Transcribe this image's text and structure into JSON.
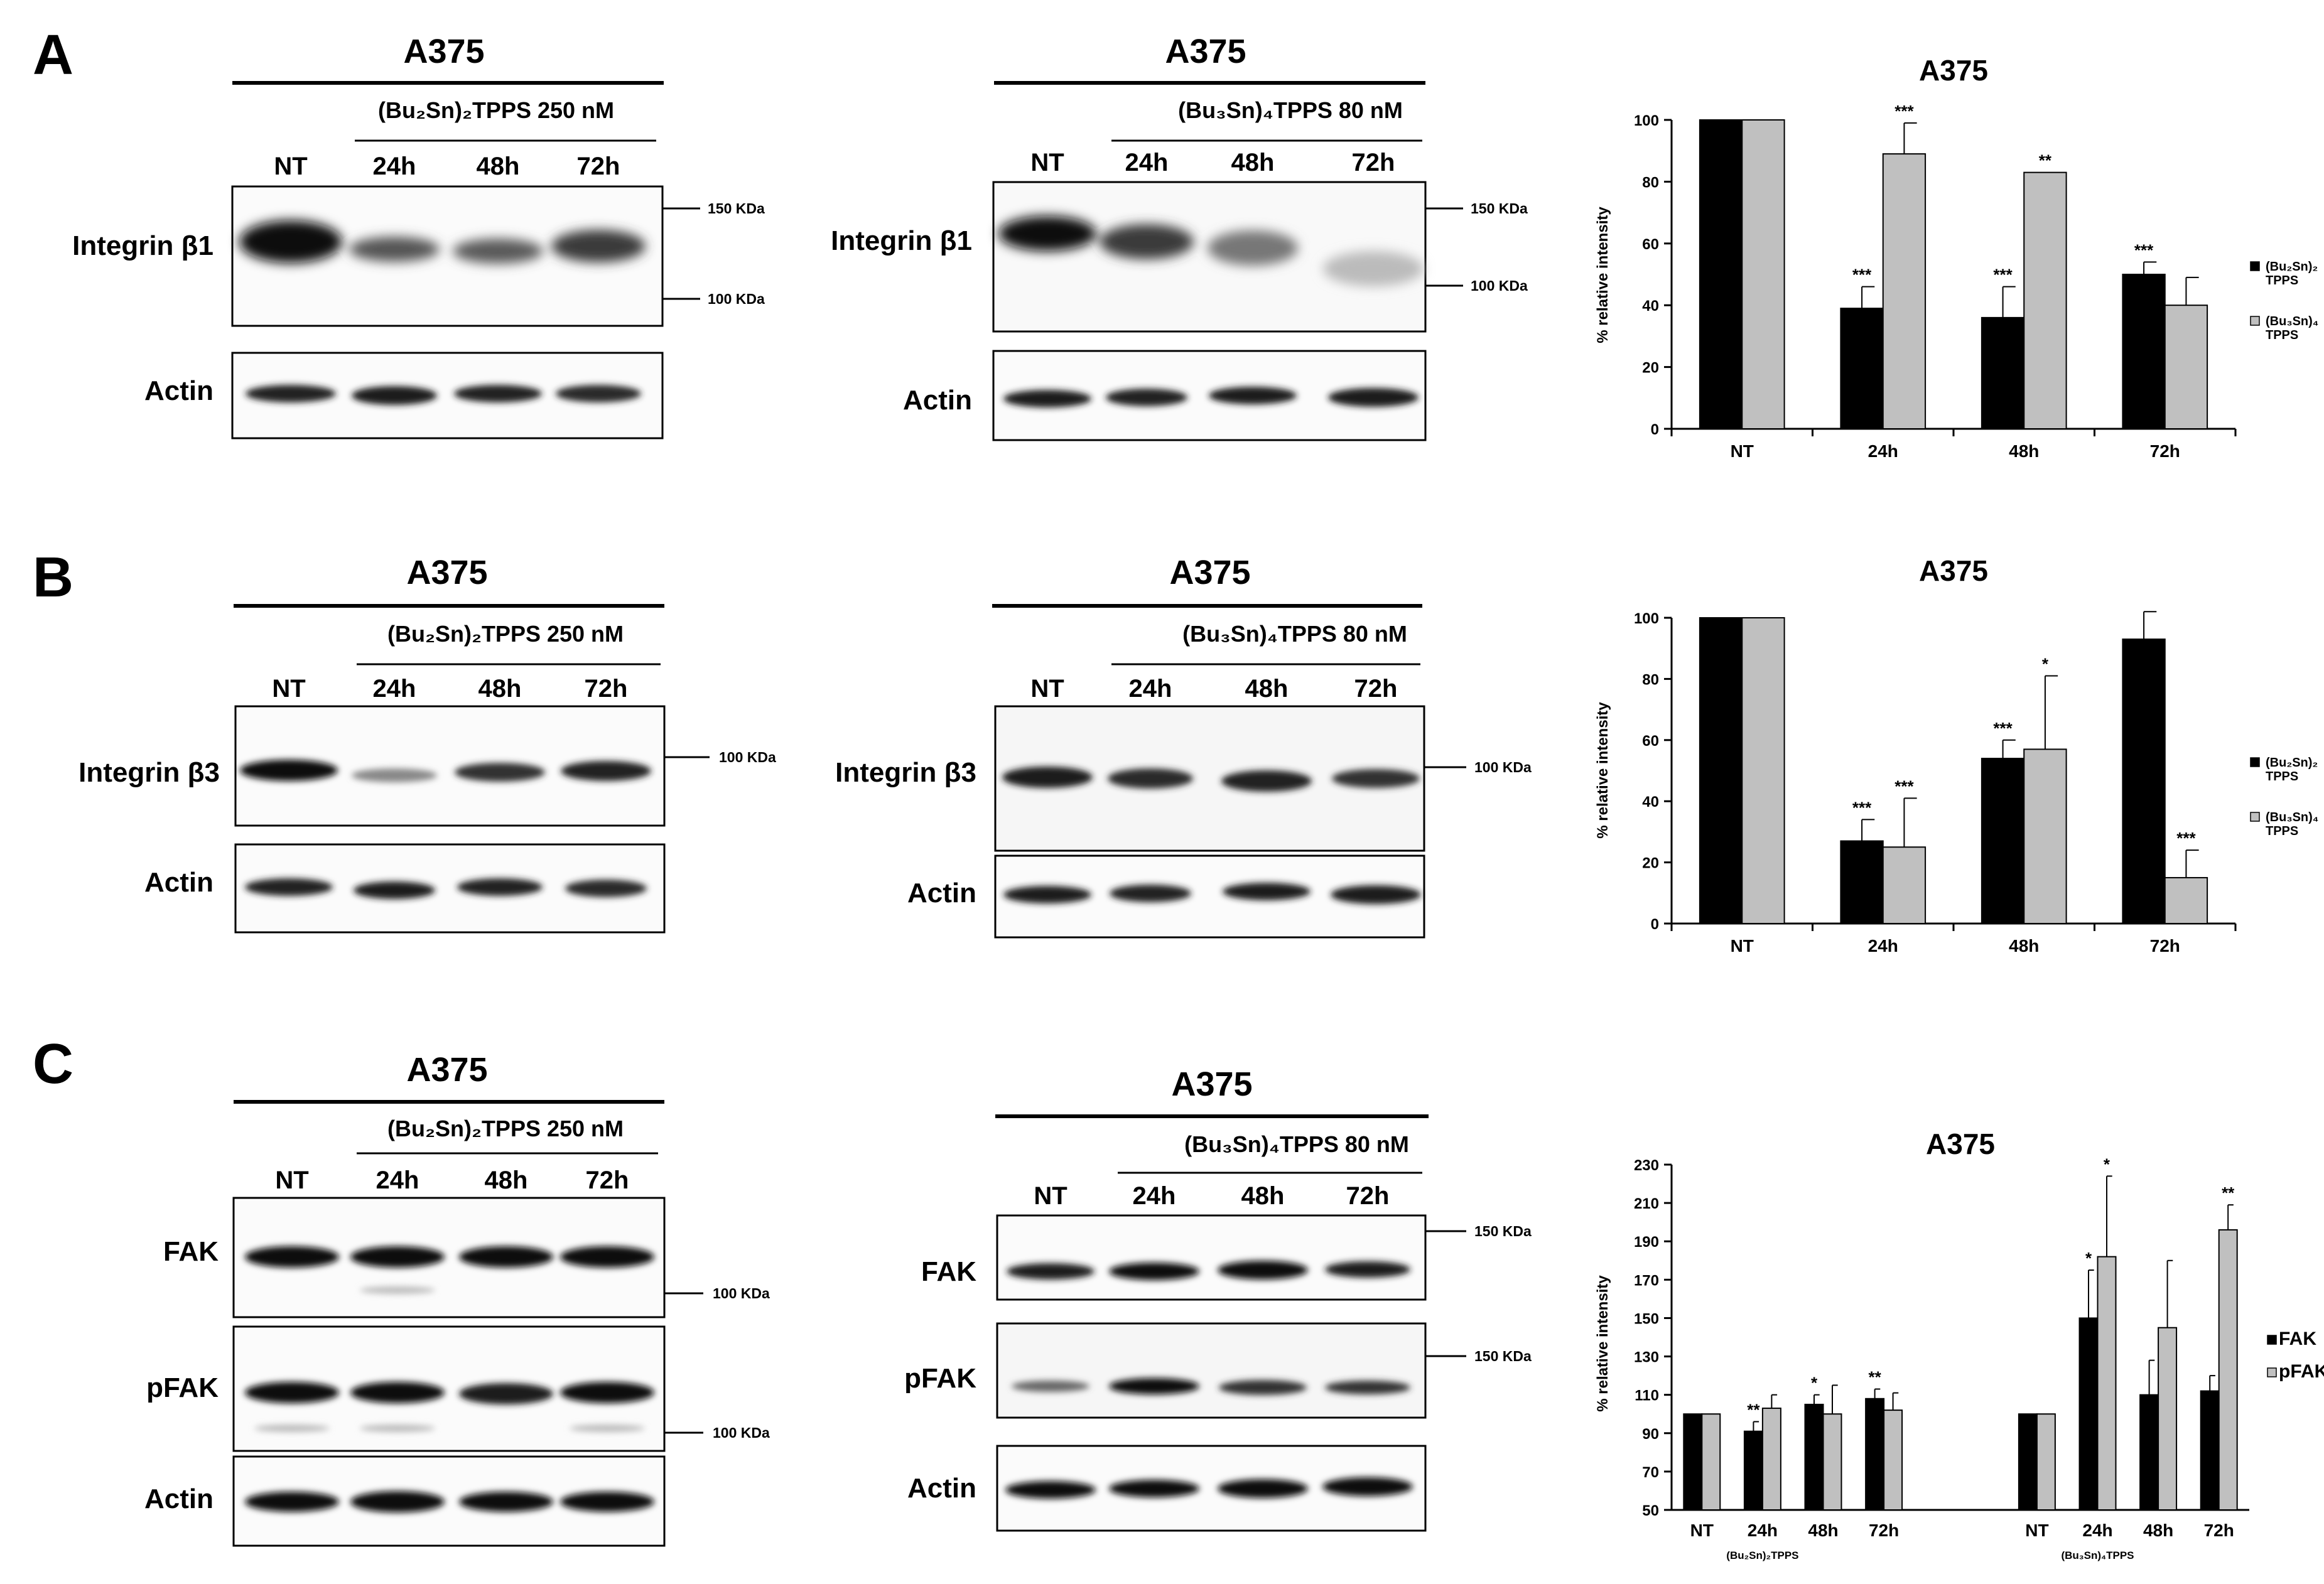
{
  "figure": {
    "rows": [
      {
        "panel": "A",
        "blots": [
          {
            "cell_line": "A375",
            "treatment": "(Bu₂Sn)₂TPPS 250 nM",
            "lanes": [
              "NT",
              "24h",
              "48h",
              "72h"
            ],
            "proteins": [
              "Integrin β1",
              "Actin"
            ],
            "markers": [
              "150 KDa",
              "100 KDa"
            ]
          },
          {
            "cell_line": "A375",
            "treatment": "(Bu₃Sn)₄TPPS 80 nM",
            "lanes": [
              "NT",
              "24h",
              "48h",
              "72h"
            ],
            "proteins": [
              "Integrin β1",
              "Actin"
            ],
            "markers": [
              "150 KDa",
              "100 KDa"
            ]
          }
        ]
      },
      {
        "panel": "B",
        "blots": [
          {
            "cell_line": "A375",
            "treatment": "(Bu₂Sn)₂TPPS 250 nM",
            "lanes": [
              "NT",
              "24h",
              "48h",
              "72h"
            ],
            "proteins": [
              "Integrin β3",
              "Actin"
            ],
            "markers": [
              "100 KDa"
            ]
          },
          {
            "cell_line": "A375",
            "treatment": "(Bu₃Sn)₄TPPS 80 nM",
            "lanes": [
              "NT",
              "24h",
              "48h",
              "72h"
            ],
            "proteins": [
              "Integrin β3",
              "Actin"
            ],
            "markers": [
              "100 KDa"
            ]
          }
        ]
      },
      {
        "panel": "C",
        "blots": [
          {
            "cell_line": "A375",
            "treatment": "(Bu₂Sn)₂TPPS 250 nM",
            "lanes": [
              "NT",
              "24h",
              "48h",
              "72h"
            ],
            "proteins": [
              "FAK",
              "pFAK",
              "Actin"
            ],
            "markers": [
              "100 KDa",
              "100 KDa"
            ]
          },
          {
            "cell_line": "A375",
            "treatment": "(Bu₃Sn)₄TPPS 80 nM",
            "lanes": [
              "NT",
              "24h",
              "48h",
              "72h"
            ],
            "proteins": [
              "FAK",
              "pFAK",
              "Actin"
            ],
            "markers": [
              "150 KDa",
              "150 KDa"
            ]
          }
        ]
      }
    ]
  },
  "chart_data": [
    {
      "type": "bar",
      "title": "A375",
      "ylabel": "% relative intensity",
      "categories": [
        "NT",
        "24h",
        "48h",
        "72h"
      ],
      "ylim": [
        0,
        100
      ],
      "yticks": [
        0,
        20,
        40,
        60,
        80,
        100
      ],
      "legend_position": "right",
      "series": [
        {
          "name": "(Bu₂Sn)₂ TPPS",
          "color": "#000000",
          "values": [
            100,
            39,
            36,
            50
          ],
          "errors": [
            0,
            7,
            10,
            4
          ],
          "sig": [
            "",
            "***",
            "***",
            "***"
          ]
        },
        {
          "name": "(Bu₃Sn)₄ TPPS",
          "color": "#c0c0c0",
          "values": [
            100,
            89,
            83,
            40
          ],
          "errors": [
            0,
            10,
            0,
            9
          ],
          "sig": [
            "",
            "***",
            "**",
            ""
          ]
        }
      ]
    },
    {
      "type": "bar",
      "title": "A375",
      "ylabel": "% relative intensity",
      "categories": [
        "NT",
        "24h",
        "48h",
        "72h"
      ],
      "ylim": [
        0,
        100
      ],
      "yticks": [
        0,
        20,
        40,
        60,
        80,
        100
      ],
      "legend_position": "right",
      "series": [
        {
          "name": "(Bu₂Sn)₂ TPPS",
          "color": "#000000",
          "values": [
            100,
            27,
            54,
            93
          ],
          "errors": [
            0,
            7,
            6,
            9
          ],
          "sig": [
            "",
            "***",
            "***",
            ""
          ]
        },
        {
          "name": "(Bu₃Sn)₄ TPPS",
          "color": "#c0c0c0",
          "values": [
            100,
            25,
            57,
            15
          ],
          "errors": [
            0,
            16,
            24,
            9
          ],
          "sig": [
            "",
            "***",
            "*",
            "***"
          ]
        }
      ]
    },
    {
      "type": "bar",
      "title": "A375",
      "ylabel": "% relative intensity",
      "categories": [
        "NT",
        "24h",
        "48h",
        "72h",
        "NT",
        "24h",
        "48h",
        "72h"
      ],
      "group_labels": [
        "(Bu₂Sn)₂TPPS",
        "(Bu₃Sn)₄TPPS"
      ],
      "ylim": [
        50,
        230
      ],
      "yticks": [
        50,
        70,
        90,
        110,
        130,
        150,
        170,
        190,
        210,
        230
      ],
      "legend_position": "right",
      "series": [
        {
          "name": "FAK",
          "color": "#000000",
          "values": [
            100,
            91,
            105,
            108,
            100,
            150,
            110,
            112
          ],
          "errors": [
            0,
            5,
            5,
            5,
            0,
            25,
            18,
            8
          ],
          "sig": [
            "",
            "**",
            "*",
            "**",
            "",
            "*",
            "",
            ""
          ]
        },
        {
          "name": "pFAK",
          "color": "#c0c0c0",
          "values": [
            100,
            103,
            100,
            102,
            100,
            182,
            145,
            196
          ],
          "errors": [
            0,
            7,
            15,
            9,
            0,
            42,
            35,
            13
          ],
          "sig": [
            "",
            "",
            "",
            "",
            "",
            "*",
            "",
            "**"
          ]
        }
      ]
    }
  ]
}
